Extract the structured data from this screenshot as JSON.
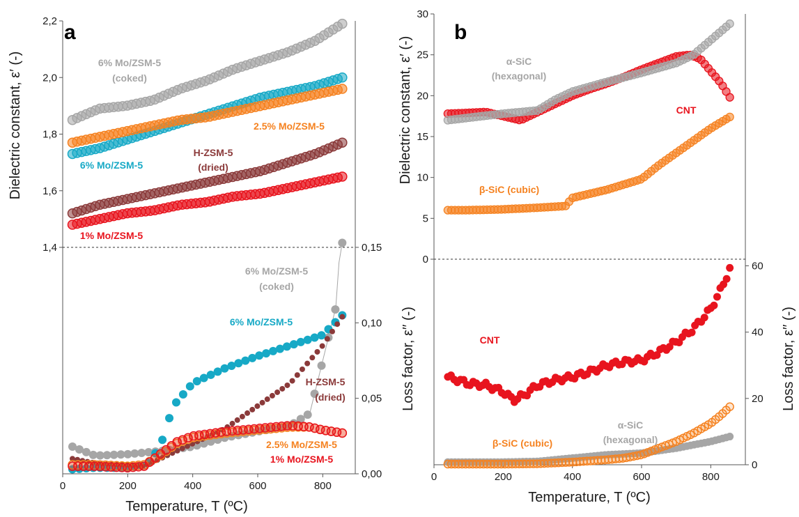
{
  "chart_data": [
    {
      "panel": "a",
      "type": "scatter",
      "xlabel": "Temperature, T (ºC)",
      "ylabel_left": "Dielectric constant, ε′ (-)",
      "ylabel_right": "Loss factor, ε′′ (-)",
      "xlim": [
        0,
        900
      ],
      "xticks": [
        0,
        200,
        400,
        600,
        800
      ],
      "ylim_left": [
        1.4,
        2.2
      ],
      "yticks_left": [
        "1,4",
        "1,6",
        "1,8",
        "2,0",
        "2,2"
      ],
      "ylim_right": [
        0.0,
        0.15
      ],
      "yticks_right": [
        "0,00",
        "0,05",
        "0,10",
        "0,15"
      ],
      "divider": "1,4 / 0,15",
      "dielectric_constant_series": [
        {
          "name": "6% Mo/ZSM-5 (coked)",
          "color": "#a6a6a6",
          "x_start": 30,
          "x_end": 860,
          "y_values": [
            1.85,
            1.89,
            1.9,
            1.92,
            1.96,
            1.99,
            2.03,
            2.06,
            2.09,
            2.13,
            2.19
          ]
        },
        {
          "name": "6% Mo/ZSM-5",
          "color": "#17a9c6",
          "x_start": 30,
          "x_end": 860,
          "y_values": [
            1.73,
            1.75,
            1.78,
            1.81,
            1.84,
            1.87,
            1.9,
            1.93,
            1.95,
            1.97,
            2.0
          ]
        },
        {
          "name": "2.5% Mo/ZSM-5",
          "color": "#f58220",
          "x_start": 30,
          "x_end": 860,
          "y_values": [
            1.77,
            1.79,
            1.81,
            1.83,
            1.85,
            1.86,
            1.88,
            1.9,
            1.92,
            1.94,
            1.96
          ]
        },
        {
          "name": "H-ZSM-5 (dried)",
          "color": "#8b3a3a",
          "x_start": 30,
          "x_end": 860,
          "y_values": [
            1.52,
            1.55,
            1.57,
            1.59,
            1.61,
            1.63,
            1.65,
            1.67,
            1.7,
            1.73,
            1.77
          ]
        },
        {
          "name": "1% Mo/ZSM-5",
          "color": "#e8141e",
          "x_start": 30,
          "x_end": 860,
          "y_values": [
            1.48,
            1.5,
            1.52,
            1.53,
            1.55,
            1.56,
            1.58,
            1.59,
            1.61,
            1.63,
            1.65
          ]
        }
      ],
      "loss_factor_series": [
        {
          "name": "6% Mo/ZSM-5 (coked)",
          "color": "#a6a6a6",
          "x": [
            30,
            100,
            200,
            300,
            400,
            500,
            600,
            700,
            760,
            800,
            840,
            850,
            860
          ],
          "y": [
            0.018,
            0.012,
            0.013,
            0.015,
            0.018,
            0.024,
            0.028,
            0.032,
            0.04,
            0.075,
            0.11,
            0.14,
            0.153
          ]
        },
        {
          "name": "6% Mo/ZSM-5",
          "color": "#17a9c6",
          "x": [
            30,
            100,
            200,
            260,
            300,
            340,
            400,
            500,
            600,
            700,
            800,
            860
          ],
          "y": [
            0.003,
            0.004,
            0.004,
            0.006,
            0.018,
            0.045,
            0.06,
            0.07,
            0.078,
            0.085,
            0.092,
            0.105
          ]
        },
        {
          "name": "H-ZSM-5 (dried)",
          "color": "#8b3a3a",
          "x": [
            30,
            100,
            200,
            250,
            300,
            400,
            500,
            600,
            700,
            800,
            860
          ],
          "y": [
            0.01,
            0.007,
            0.006,
            0.005,
            0.01,
            0.02,
            0.03,
            0.045,
            0.06,
            0.085,
            0.104
          ]
        },
        {
          "name": "2.5% Mo/ZSM-5",
          "color": "#f58220",
          "x": [
            30,
            100,
            200,
            250,
            300,
            350,
            400,
            500,
            600,
            700,
            760,
            800,
            860
          ],
          "y": [
            0.006,
            0.006,
            0.005,
            0.006,
            0.012,
            0.02,
            0.024,
            0.027,
            0.029,
            0.031,
            0.031,
            0.029,
            0.027
          ]
        },
        {
          "name": "1% Mo/ZSM-5",
          "color": "#e8141e",
          "x": [
            30,
            100,
            200,
            250,
            300,
            350,
            400,
            500,
            600,
            700,
            760,
            800,
            860
          ],
          "y": [
            0.005,
            0.005,
            0.004,
            0.005,
            0.013,
            0.021,
            0.025,
            0.028,
            0.03,
            0.032,
            0.031,
            0.029,
            0.027
          ]
        }
      ],
      "annotations": [
        {
          "text": "6% Mo/ZSM-5",
          "color": "#a6a6a6"
        },
        {
          "text": "(coked)",
          "color": "#a6a6a6"
        },
        {
          "text": "2.5% Mo/ZSM-5",
          "color": "#f58220"
        },
        {
          "text": "H-ZSM-5",
          "color": "#8b3a3a"
        },
        {
          "text": "(dried)",
          "color": "#8b3a3a"
        },
        {
          "text": "6% Mo/ZSM-5",
          "color": "#17a9c6"
        },
        {
          "text": "1% Mo/ZSM-5",
          "color": "#e8141e"
        },
        {
          "text": "6% Mo/ZSM-5",
          "color": "#a6a6a6"
        },
        {
          "text": "(coked)",
          "color": "#a6a6a6"
        },
        {
          "text": "6% Mo/ZSM-5",
          "color": "#17a9c6"
        },
        {
          "text": "H-ZSM-5",
          "color": "#8b3a3a"
        },
        {
          "text": "(dried)",
          "color": "#8b3a3a"
        },
        {
          "text": "2.5% Mo/ZSM-5",
          "color": "#f58220"
        },
        {
          "text": "1% Mo/ZSM-5",
          "color": "#e8141e"
        }
      ]
    },
    {
      "panel": "b",
      "type": "scatter",
      "xlabel": "Temperature, T (ºC)",
      "ylabel_left": "Dielectric constant, ε′ (-)",
      "ylabel_right": "Loss factor, ε′′ (-)",
      "xlim": [
        0,
        900
      ],
      "xticks": [
        0,
        200,
        400,
        600,
        800
      ],
      "ylim_left": [
        0,
        30
      ],
      "yticks_left": [
        0,
        5,
        10,
        15,
        20,
        25,
        30
      ],
      "ylim_right": [
        0,
        62
      ],
      "yticks_right": [
        0,
        20,
        40,
        60
      ],
      "dielectric_constant_series": [
        {
          "name": "CNT",
          "color": "#e8141e",
          "x": [
            40,
            100,
            150,
            200,
            250,
            300,
            350,
            400,
            450,
            500,
            550,
            600,
            650,
            700,
            740,
            770,
            800,
            830,
            855
          ],
          "y": [
            17.8,
            17.9,
            18.0,
            17.5,
            17.0,
            18.0,
            19.0,
            20.0,
            20.8,
            21.5,
            22.3,
            23.2,
            24.0,
            24.8,
            25.0,
            24.5,
            23.0,
            21.5,
            19.8
          ]
        },
        {
          "name": "α-SiC (hexagonal)",
          "color": "#a6a6a6",
          "x": [
            40,
            100,
            200,
            300,
            350,
            400,
            500,
            600,
            700,
            750,
            800,
            855
          ],
          "y": [
            17.0,
            17.3,
            17.8,
            18.2,
            19.5,
            20.5,
            21.7,
            22.8,
            24.0,
            25.0,
            26.8,
            28.8
          ]
        },
        {
          "name": "β-SiC (cubic)",
          "color": "#f58220",
          "x": [
            40,
            100,
            200,
            300,
            380,
            400,
            500,
            600,
            650,
            700,
            750,
            800,
            855
          ],
          "y": [
            6.0,
            6.0,
            6.1,
            6.3,
            6.5,
            7.5,
            8.5,
            9.8,
            11.5,
            13.0,
            14.5,
            16.0,
            17.4
          ]
        }
      ],
      "loss_factor_series": [
        {
          "name": "CNT",
          "color": "#e8141e",
          "x": [
            40,
            100,
            150,
            200,
            230,
            260,
            300,
            350,
            400,
            450,
            500,
            550,
            600,
            650,
            700,
            750,
            800,
            830,
            855
          ],
          "y": [
            26.5,
            24.5,
            24.0,
            22.0,
            19.5,
            21.0,
            24.0,
            25.5,
            26.5,
            28.0,
            30.0,
            31.0,
            31.5,
            34.0,
            37.0,
            41.0,
            47.0,
            53.0,
            59.0
          ]
        },
        {
          "name": "α-SiC (hexagonal)",
          "color": "#a6a6a6",
          "x": [
            40,
            100,
            200,
            300,
            400,
            500,
            600,
            700,
            800,
            855
          ],
          "y": [
            0.8,
            0.8,
            0.8,
            1.0,
            2.0,
            3.0,
            3.5,
            5.0,
            7.0,
            8.5
          ]
        },
        {
          "name": "β-SiC (cubic)",
          "color": "#f58220",
          "x": [
            40,
            100,
            200,
            300,
            400,
            500,
            550,
            600,
            650,
            700,
            750,
            800,
            830,
            855
          ],
          "y": [
            0.2,
            0.2,
            0.2,
            0.3,
            0.8,
            1.5,
            2.0,
            3.0,
            5.0,
            7.0,
            9.5,
            12.5,
            15.0,
            17.5
          ]
        }
      ],
      "annotations": [
        {
          "text": "α-SiC",
          "color": "#a6a6a6"
        },
        {
          "text": "(hexagonal)",
          "color": "#a6a6a6"
        },
        {
          "text": "CNT",
          "color": "#e8141e"
        },
        {
          "text": "β-SiC (cubic)",
          "color": "#f58220"
        },
        {
          "text": "CNT",
          "color": "#e8141e"
        },
        {
          "text": "α-SiC",
          "color": "#a6a6a6"
        },
        {
          "text": "(hexagonal)",
          "color": "#a6a6a6"
        },
        {
          "text": "β-SiC (cubic)",
          "color": "#f58220"
        }
      ]
    }
  ]
}
